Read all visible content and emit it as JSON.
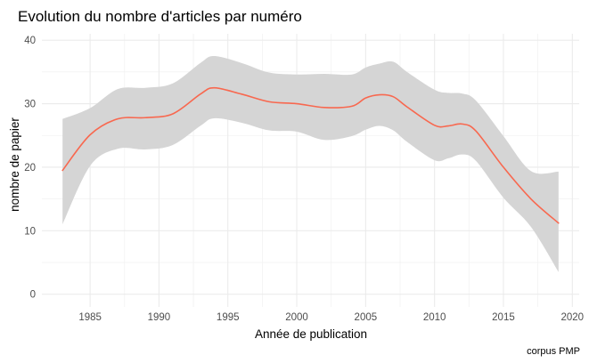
{
  "chart_data": {
    "type": "line",
    "title": "Evolution du nombre d'articles par numéro",
    "xlabel": "Année de publication",
    "ylabel": "nombre de papier",
    "caption": "corpus PMP",
    "xlim": [
      1981.5,
      2020.5
    ],
    "ylim": [
      -2,
      41
    ],
    "x_ticks": [
      1985,
      1990,
      1995,
      2000,
      2005,
      2010,
      2015,
      2020
    ],
    "y_ticks": [
      0,
      10,
      20,
      30,
      40
    ],
    "grid": true,
    "series": [
      {
        "color": "#f8684f",
        "x": [
          1983,
          1985,
          1987,
          1989,
          1991,
          1993,
          1994,
          1996,
          1998,
          2000,
          2002,
          2004,
          2005,
          2006,
          2007,
          2008,
          2010,
          2011,
          2012,
          2013,
          2015,
          2017,
          2019
        ],
        "y": [
          19.5,
          25.1,
          27.6,
          27.8,
          28.4,
          31.5,
          32.5,
          31.5,
          30.3,
          30.0,
          29.4,
          29.6,
          30.9,
          31.4,
          31.1,
          29.5,
          26.6,
          26.5,
          26.8,
          25.7,
          20.0,
          15.0,
          11.2
        ],
        "band_lower": [
          11.0,
          20.2,
          22.9,
          22.8,
          23.5,
          26.5,
          27.7,
          27.0,
          25.8,
          25.6,
          24.3,
          24.9,
          25.9,
          26.5,
          25.8,
          24.0,
          21.1,
          21.4,
          22.0,
          21.0,
          15.2,
          10.6,
          3.5
        ],
        "band_upper": [
          27.6,
          29.3,
          32.3,
          32.5,
          33.2,
          36.4,
          37.5,
          36.4,
          34.9,
          34.6,
          34.7,
          34.6,
          35.7,
          36.3,
          36.6,
          35.0,
          32.2,
          31.7,
          31.6,
          30.5,
          24.9,
          19.4,
          19.3
        ],
        "band_color": "#d5d5d5"
      }
    ]
  }
}
